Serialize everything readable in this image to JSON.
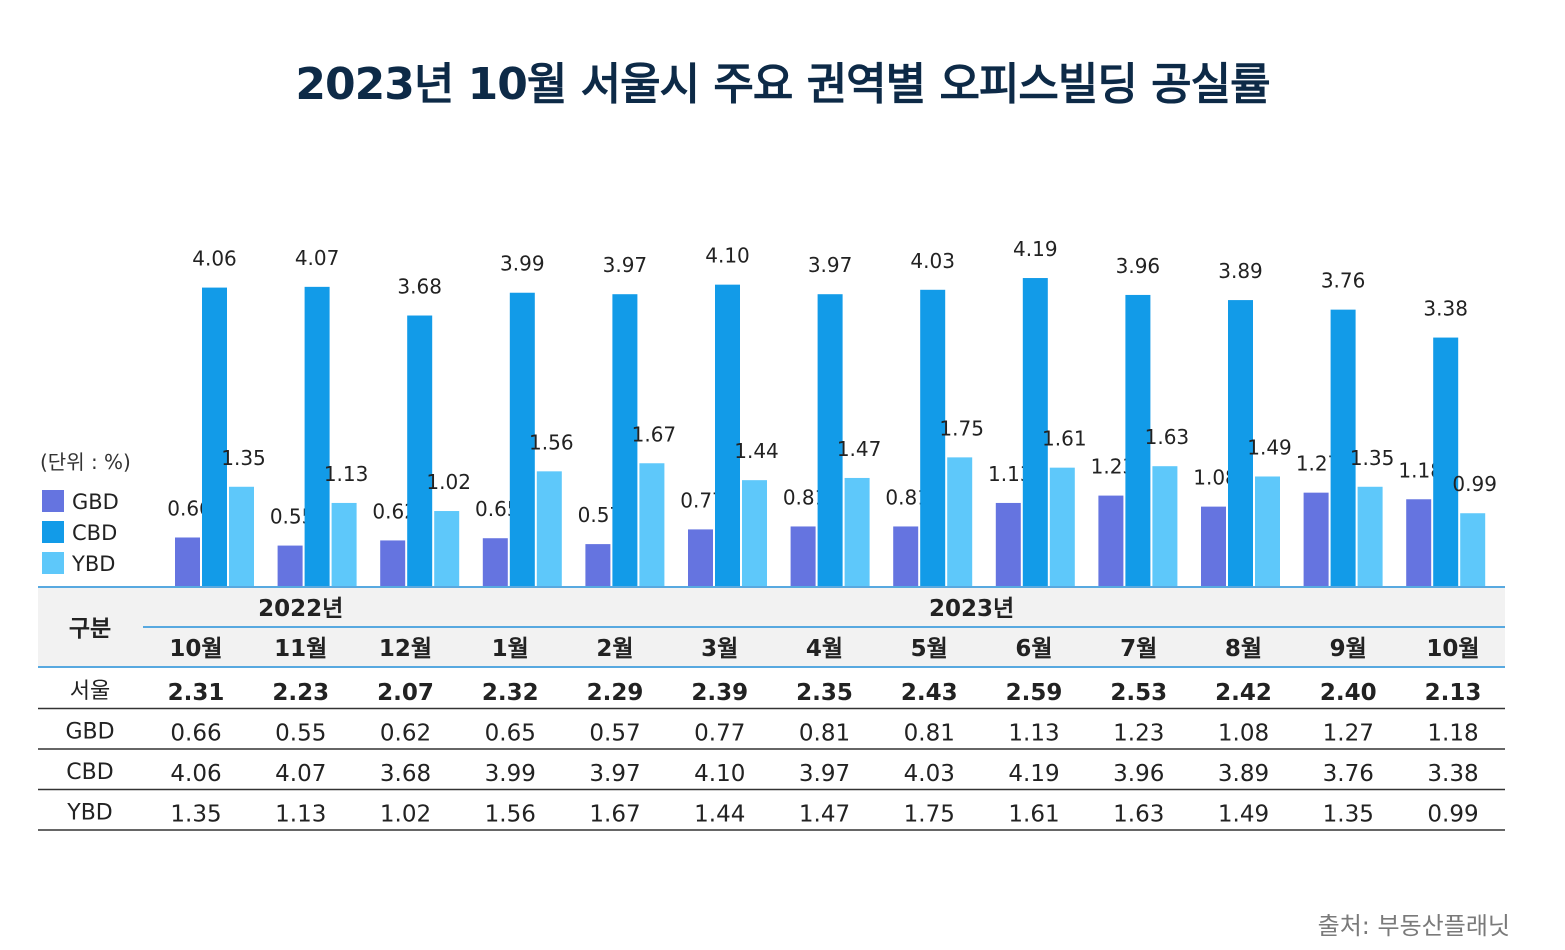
{
  "chart_data": {
    "type": "bar",
    "title": "2023년 10월 서울시 주요 권역별 오피스빌딩 공실률",
    "unit_label": "(단위 : %)",
    "categories": [
      "10월",
      "11월",
      "12월",
      "1월",
      "2월",
      "3월",
      "4월",
      "5월",
      "6월",
      "7월",
      "8월",
      "9월",
      "10월"
    ],
    "year_groups": [
      {
        "label": "2022년",
        "span": 3
      },
      {
        "label": "2023년",
        "span": 10
      }
    ],
    "series": [
      {
        "name": "GBD",
        "color": "#6574e0",
        "values": [
          0.66,
          0.55,
          0.62,
          0.65,
          0.57,
          0.77,
          0.81,
          0.81,
          1.13,
          1.23,
          1.08,
          1.27,
          1.18
        ]
      },
      {
        "name": "CBD",
        "color": "#129be8",
        "values": [
          4.06,
          4.07,
          3.68,
          3.99,
          3.97,
          4.1,
          3.97,
          4.03,
          4.19,
          3.96,
          3.89,
          3.76,
          3.38
        ]
      },
      {
        "name": "YBD",
        "color": "#5ec8fa",
        "values": [
          1.35,
          1.13,
          1.02,
          1.56,
          1.67,
          1.44,
          1.47,
          1.75,
          1.61,
          1.63,
          1.49,
          1.35,
          0.99
        ]
      }
    ],
    "ylim": [
      0,
      4.5
    ],
    "grid": false,
    "legend_placement": "left",
    "table": {
      "header_label": "구분",
      "rows": [
        {
          "label": "서울",
          "bold": true,
          "values": [
            "2.31",
            "2.23",
            "2.07",
            "2.32",
            "2.29",
            "2.39",
            "2.35",
            "2.43",
            "2.59",
            "2.53",
            "2.42",
            "2.40",
            "2.13"
          ]
        },
        {
          "label": "GBD",
          "values": [
            "0.66",
            "0.55",
            "0.62",
            "0.65",
            "0.57",
            "0.77",
            "0.81",
            "0.81",
            "1.13",
            "1.23",
            "1.08",
            "1.27",
            "1.18"
          ]
        },
        {
          "label": "CBD",
          "values": [
            "4.06",
            "4.07",
            "3.68",
            "3.99",
            "3.97",
            "4.10",
            "3.97",
            "4.03",
            "4.19",
            "3.96",
            "3.89",
            "3.76",
            "3.38"
          ]
        },
        {
          "label": "YBD",
          "values": [
            "1.35",
            "1.13",
            "1.02",
            "1.56",
            "1.67",
            "1.44",
            "1.47",
            "1.75",
            "1.61",
            "1.63",
            "1.49",
            "1.35",
            "0.99"
          ]
        }
      ]
    }
  },
  "source": "출처: 부동산플래닛"
}
